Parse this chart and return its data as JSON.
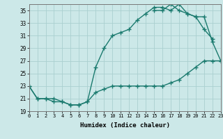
{
  "title": "",
  "xlabel": "Humidex (Indice chaleur)",
  "ylabel": "",
  "x_values": [
    0,
    1,
    2,
    3,
    4,
    5,
    6,
    7,
    8,
    9,
    10,
    11,
    12,
    13,
    14,
    15,
    16,
    17,
    18,
    19,
    20,
    21,
    22,
    23
  ],
  "line1_y": [
    23,
    21,
    21,
    21,
    20.5,
    20,
    20,
    20.5,
    22,
    22.5,
    23,
    23,
    23,
    23,
    23,
    23,
    23,
    23.5,
    24,
    25,
    26,
    27,
    27,
    27
  ],
  "line2_y": [
    23,
    21,
    21,
    20.5,
    20.5,
    20,
    20,
    20.5,
    26,
    29,
    31,
    31.5,
    32,
    33.5,
    34.5,
    35.5,
    35.5,
    35,
    36,
    34.5,
    34,
    32,
    30.5,
    null
  ],
  "line3_y": [
    null,
    null,
    null,
    null,
    null,
    null,
    null,
    null,
    null,
    null,
    null,
    null,
    null,
    null,
    null,
    35,
    35,
    36,
    35,
    34.5,
    34,
    34,
    30,
    27
  ],
  "line_color": "#1a7a6e",
  "bg_color": "#cce8e8",
  "grid_color": "#aad0d0",
  "ylim": [
    19,
    36
  ],
  "yticks": [
    19,
    21,
    23,
    25,
    27,
    29,
    31,
    33,
    35
  ],
  "xlim": [
    0,
    23
  ],
  "marker": "+",
  "markersize": 4,
  "linewidth": 1.0
}
